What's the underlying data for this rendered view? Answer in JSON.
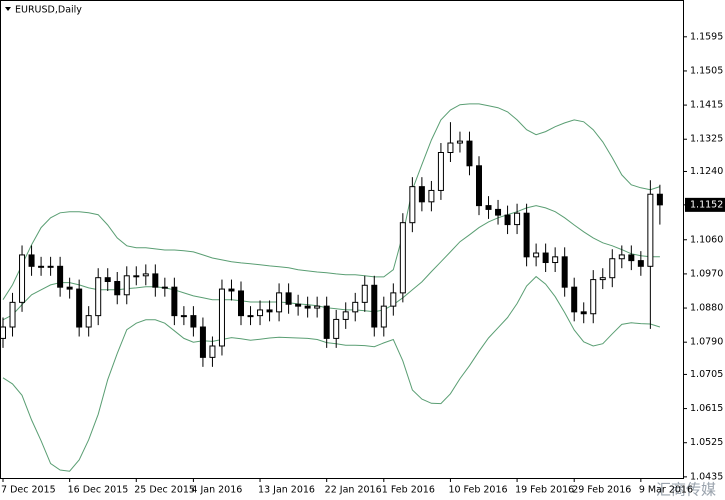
{
  "chart_data": {
    "type": "candlestick",
    "title": "EURUSD,Daily",
    "watermark": "汇商传媒",
    "categories": [
      "7 Dec 2015",
      null,
      null,
      null,
      null,
      null,
      null,
      "16 Dec 2015",
      null,
      null,
      null,
      null,
      null,
      null,
      "25 Dec 2015",
      null,
      null,
      null,
      null,
      null,
      "4 Jan 2016",
      null,
      null,
      null,
      null,
      null,
      null,
      "13 Jan 2016",
      null,
      null,
      null,
      null,
      null,
      null,
      "22 Jan 2016",
      null,
      null,
      null,
      null,
      null,
      "1 Feb 2016",
      null,
      null,
      null,
      null,
      null,
      null,
      "10 Feb 2016",
      null,
      null,
      null,
      null,
      null,
      null,
      "19 Feb 2016",
      null,
      null,
      null,
      null,
      null,
      "29 Feb 2016",
      null,
      null,
      null,
      null,
      null,
      null,
      "9 Mar 2016",
      null,
      null
    ],
    "open": [
      1.08,
      1.083,
      1.0895,
      1.102,
      1.099,
      1.099,
      1.099,
      1.0935,
      1.093,
      1.083,
      1.086,
      1.096,
      1.095,
      1.0915,
      1.0965,
      1.0965,
      1.097,
      1.0935,
      1.0935,
      1.086,
      1.086,
      1.083,
      1.075,
      1.078,
      1.093,
      1.0925,
      1.086,
      1.086,
      1.0875,
      1.087,
      1.092,
      1.089,
      1.0885,
      1.088,
      1.0885,
      1.08,
      1.085,
      1.087,
      1.0895,
      1.094,
      1.083,
      1.0885,
      1.092,
      1.1105,
      1.12,
      1.116,
      1.119,
      1.129,
      1.1315,
      1.132,
      1.1255,
      1.115,
      1.114,
      1.1125,
      1.11,
      1.113,
      1.1015,
      1.1025,
      1.1,
      1.1015,
      1.0935,
      1.087,
      1.0865,
      1.0955,
      1.096,
      1.101,
      1.102,
      1.1005,
      1.099,
      1.118
    ],
    "high": [
      1.0855,
      1.092,
      1.1045,
      1.1045,
      1.1015,
      1.1015,
      1.1015,
      1.096,
      1.0955,
      1.0885,
      1.0985,
      1.0985,
      1.0975,
      1.099,
      1.099,
      1.0995,
      1.0995,
      1.096,
      1.096,
      1.0885,
      1.0885,
      1.0855,
      1.0805,
      1.0955,
      1.0955,
      1.095,
      1.0885,
      1.09,
      1.09,
      1.0945,
      1.0945,
      1.0915,
      1.091,
      1.091,
      1.091,
      1.0875,
      1.0895,
      1.092,
      1.0965,
      1.0965,
      1.091,
      1.0945,
      1.113,
      1.1225,
      1.1225,
      1.1215,
      1.1315,
      1.137,
      1.1345,
      1.1345,
      1.128,
      1.1175,
      1.1165,
      1.115,
      1.1155,
      1.1155,
      1.105,
      1.105,
      1.104,
      1.104,
      1.096,
      1.0895,
      1.098,
      1.0985,
      1.1035,
      1.1045,
      1.1045,
      1.103,
      1.1217,
      1.1205
    ],
    "low": [
      1.0775,
      1.0805,
      1.087,
      1.0965,
      1.0965,
      1.0965,
      1.091,
      1.0905,
      1.0805,
      1.0805,
      1.0835,
      1.0925,
      1.089,
      1.089,
      1.094,
      1.094,
      1.091,
      1.091,
      1.0835,
      1.0835,
      1.0805,
      1.0725,
      1.0725,
      1.0755,
      1.09,
      1.0835,
      1.0835,
      1.0835,
      1.0845,
      1.0845,
      1.0865,
      1.086,
      1.0855,
      1.0855,
      1.0775,
      1.0775,
      1.0825,
      1.0845,
      1.087,
      1.0805,
      1.0805,
      1.086,
      1.0895,
      1.108,
      1.1135,
      1.1135,
      1.1165,
      1.1265,
      1.129,
      1.123,
      1.1125,
      1.1115,
      1.11,
      1.1075,
      1.1075,
      1.099,
      1.099,
      1.0975,
      1.0975,
      1.091,
      1.0845,
      1.084,
      1.084,
      1.093,
      1.0935,
      1.0985,
      1.098,
      1.0965,
      1.0825,
      1.11
    ],
    "close": [
      1.083,
      1.0895,
      1.102,
      1.099,
      1.099,
      1.099,
      1.0935,
      1.093,
      1.083,
      1.086,
      1.096,
      1.095,
      1.0915,
      1.0965,
      1.0965,
      1.097,
      1.0935,
      1.0935,
      1.086,
      1.086,
      1.083,
      1.075,
      1.078,
      1.093,
      1.0925,
      1.086,
      1.086,
      1.0875,
      1.087,
      1.092,
      1.089,
      1.0885,
      1.088,
      1.0885,
      1.08,
      1.085,
      1.087,
      1.0895,
      1.094,
      1.083,
      1.0885,
      1.092,
      1.1105,
      1.12,
      1.116,
      1.119,
      1.129,
      1.1315,
      1.132,
      1.1255,
      1.115,
      1.114,
      1.1125,
      1.11,
      1.113,
      1.1015,
      1.1025,
      1.1,
      1.1015,
      1.0935,
      1.087,
      1.0865,
      1.0955,
      1.096,
      1.101,
      1.102,
      1.1005,
      1.099,
      1.118,
      1.1152
    ],
    "upper_band": [
      1.0902,
      1.0941,
      1.0994,
      1.1047,
      1.1092,
      1.1118,
      1.1131,
      1.1134,
      1.1134,
      1.1131,
      1.1126,
      1.1099,
      1.1065,
      1.1044,
      1.1039,
      1.1039,
      1.1036,
      1.1033,
      1.1033,
      1.1031,
      1.1028,
      1.102,
      1.1012,
      1.1007,
      1.1002,
      1.0999,
      1.0997,
      1.0994,
      1.0991,
      1.0989,
      1.0986,
      1.0981,
      1.0978,
      1.0975,
      1.0973,
      1.097,
      1.0968,
      1.0968,
      1.0965,
      1.0962,
      1.0962,
      1.0981,
      1.1073,
      1.1192,
      1.1258,
      1.1323,
      1.1376,
      1.1402,
      1.1416,
      1.1418,
      1.1418,
      1.1413,
      1.1408,
      1.1397,
      1.1376,
      1.135,
      1.1337,
      1.1345,
      1.1358,
      1.1368,
      1.1376,
      1.1371,
      1.135,
      1.1318,
      1.1276,
      1.1231,
      1.1205,
      1.1197,
      1.1192,
      1.12
    ],
    "middle_band": [
      1.0849,
      1.0862,
      1.0889,
      1.0915,
      1.0928,
      1.0941,
      1.0947,
      1.0947,
      1.0941,
      1.0933,
      1.0928,
      1.0928,
      1.0928,
      1.0931,
      1.0933,
      1.0936,
      1.0936,
      1.0933,
      1.0928,
      1.092,
      1.0912,
      1.0907,
      1.0902,
      1.0902,
      1.0902,
      1.0899,
      1.0896,
      1.0896,
      1.0896,
      1.0896,
      1.0894,
      1.0891,
      1.0889,
      1.0886,
      1.0881,
      1.0878,
      1.0875,
      1.0875,
      1.0873,
      1.087,
      1.0875,
      1.0889,
      1.0907,
      1.0928,
      1.0949,
      1.0976,
      1.1002,
      1.1028,
      1.1055,
      1.1073,
      1.1092,
      1.1107,
      1.1118,
      1.1126,
      1.1134,
      1.1144,
      1.115,
      1.1144,
      1.1134,
      1.1118,
      1.1099,
      1.1081,
      1.1065,
      1.1052,
      1.1044,
      1.1034,
      1.1023,
      1.1018,
      1.1015,
      1.1015
    ],
    "lower_band": [
      1.0696,
      1.068,
      1.065,
      1.0585,
      1.053,
      1.047,
      1.0453,
      1.045,
      1.048,
      1.0533,
      1.06,
      1.0691,
      1.076,
      1.0823,
      1.084,
      1.0849,
      1.0849,
      1.084,
      1.082,
      1.08,
      1.079,
      1.0794,
      1.0792,
      1.0797,
      1.0802,
      1.0799,
      1.0795,
      1.0798,
      1.0801,
      1.0803,
      1.0802,
      1.0801,
      1.08,
      1.0797,
      1.0789,
      1.0786,
      1.0782,
      1.0782,
      1.0781,
      1.0778,
      1.0788,
      1.0797,
      1.0741,
      1.0664,
      1.064,
      1.0629,
      1.0628,
      1.0654,
      1.0694,
      1.0728,
      1.0766,
      1.0801,
      1.0828,
      1.0855,
      1.0892,
      1.0938,
      1.0963,
      1.0943,
      1.091,
      1.0868,
      1.0822,
      1.0791,
      1.078,
      1.0786,
      1.0812,
      1.0837,
      1.0841,
      1.0839,
      1.0838,
      1.083
    ],
    "band_color": "#5a9e73",
    "up_color": "#ffffff",
    "down_color": "#000000",
    "current_price": 1.1152,
    "ylim": [
      1.0432,
      1.1692
    ],
    "yticks": [
      1.1595,
      1.1505,
      1.1415,
      1.1325,
      {
        "value": 1.124,
        "label": "1.1240"
      },
      {
        "value": 1.106,
        "label": "1.1060"
      },
      {
        "value": 1.097,
        "label": "1.0970"
      },
      {
        "value": 1.088,
        "label": "1.0880"
      },
      {
        "value": 1.079,
        "label": "1.0790"
      },
      1.0705,
      1.0615,
      1.0525,
      1.0435
    ],
    "grid": false
  }
}
